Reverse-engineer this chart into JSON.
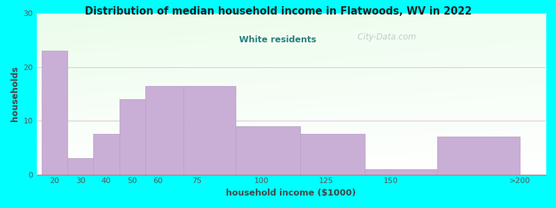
{
  "title": "Distribution of median household income in Flatwoods, WV in 2022",
  "subtitle": "White residents",
  "xlabel": "household income ($1000)",
  "ylabel": "households",
  "background_color": "#00FFFF",
  "bar_color": "#c9aed6",
  "bar_edge_color": "#b89cc4",
  "values": [
    23,
    3,
    7.5,
    14,
    16.5,
    16.5,
    9,
    7.5,
    1,
    7
  ],
  "bar_lefts": [
    15,
    25,
    35,
    45,
    55,
    70,
    90,
    115,
    140,
    168
  ],
  "bar_widths": [
    10,
    10,
    10,
    10,
    15,
    20,
    25,
    25,
    28,
    32
  ],
  "ylim": [
    0,
    30
  ],
  "yticks": [
    0,
    10,
    20,
    30
  ],
  "tick_positions": [
    20,
    30,
    40,
    50,
    60,
    75,
    100,
    125,
    150,
    200
  ],
  "tick_labels": [
    "20",
    "30",
    "40",
    "50",
    "60",
    "75",
    "100",
    "125",
    "150",
    ">200"
  ],
  "xlim": [
    13,
    210
  ],
  "subtitle_color": "#2a8080",
  "title_color": "#222222",
  "axis_label_color": "#444444",
  "tick_color": "#555555",
  "grid_color": "#ddc8dd",
  "watermark": "  City-Data.com"
}
